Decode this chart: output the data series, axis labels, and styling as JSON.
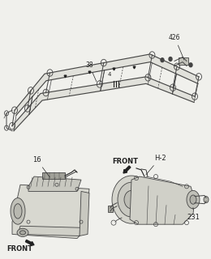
{
  "bg_color": "#f0f0ec",
  "line_color": "#444444",
  "dark_color": "#222222",
  "fill_light": "#e0e0d8",
  "fill_mid": "#c8c8c0",
  "fill_dark": "#b0b0a8",
  "border_color": "#999999",
  "top_panel": {
    "label_426": "426",
    "label_38": "38",
    "label_4": "4"
  },
  "bottom_left": {
    "label_16": "16",
    "label_front": "FRONT"
  },
  "bottom_right": {
    "label_h2": "H-2",
    "label_front": "FRONT",
    "label_231": "231"
  }
}
